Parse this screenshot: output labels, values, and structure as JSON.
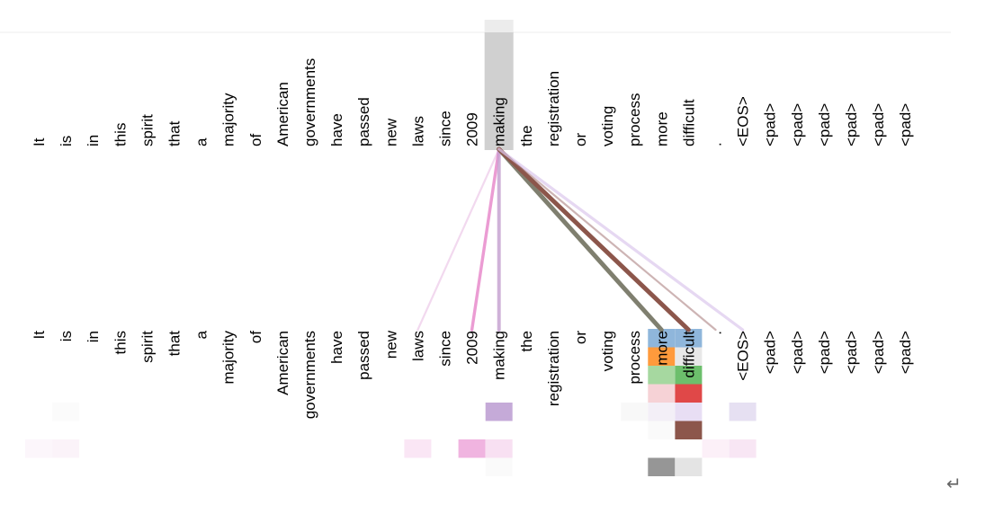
{
  "tokens": [
    "It",
    "is",
    "in",
    "this",
    "spirit",
    "that",
    "a",
    "majority",
    "of",
    "American",
    "governments",
    "have",
    "passed",
    "new",
    "laws",
    "since",
    "2009",
    "making",
    "the",
    "registration",
    "or",
    "voting",
    "process",
    "more",
    "difficult",
    ".",
    "<EOS>",
    "<pad>",
    "<pad>",
    "<pad>",
    "<pad>",
    "<pad>",
    "<pad>"
  ],
  "query_token_index": 17,
  "colors": {
    "highlight": "#d0d0d0",
    "highlight_cap": "#ececec"
  },
  "attention_lines": [
    {
      "to": 14,
      "color": "#e7b7e0",
      "weight": 0.2
    },
    {
      "to": 16,
      "color": "#e377c2",
      "weight": 0.55
    },
    {
      "to": 17,
      "color": "#c5a0d0",
      "weight": 0.7
    },
    {
      "to": 23,
      "color": "#7f7f6f",
      "weight": 1.0
    },
    {
      "to": 24,
      "color": "#8c564b",
      "weight": 1.0
    },
    {
      "to": 25,
      "color": "#a07070",
      "weight": 0.2
    },
    {
      "to": 26,
      "color": "#dcc8ec",
      "weight": 0.5
    }
  ],
  "head_cells": [
    {
      "token": 23,
      "row": 0,
      "color": "#8fb6db"
    },
    {
      "token": 24,
      "row": 0,
      "color": "#8fb6db"
    },
    {
      "token": 23,
      "row": 1,
      "color": "#ff9a3c"
    },
    {
      "token": 24,
      "row": 1,
      "color": "#e8e8e8"
    },
    {
      "token": 23,
      "row": 2,
      "color": "#a6d8a0"
    },
    {
      "token": 24,
      "row": 2,
      "color": "#6cbf6c"
    },
    {
      "token": 23,
      "row": 3,
      "color": "#f6d2d6"
    },
    {
      "token": 24,
      "row": 3,
      "color": "#e04848"
    },
    {
      "token": 1,
      "row": 4,
      "color": "#fbfbfb"
    },
    {
      "token": 17,
      "row": 4,
      "color": "#c5aad8"
    },
    {
      "token": 22,
      "row": 4,
      "color": "#f8f8f8"
    },
    {
      "token": 23,
      "row": 4,
      "color": "#f3eff7"
    },
    {
      "token": 24,
      "row": 4,
      "color": "#e8def4"
    },
    {
      "token": 26,
      "row": 4,
      "color": "#e6e0f2"
    },
    {
      "token": 23,
      "row": 5,
      "color": "#fafafa"
    },
    {
      "token": 24,
      "row": 5,
      "color": "#8c564b"
    },
    {
      "token": 0,
      "row": 6,
      "color": "#fcf6fb"
    },
    {
      "token": 1,
      "row": 6,
      "color": "#fbf3f9"
    },
    {
      "token": 14,
      "row": 6,
      "color": "#fae6f5"
    },
    {
      "token": 16,
      "row": 6,
      "color": "#f0b4e0"
    },
    {
      "token": 17,
      "row": 6,
      "color": "#f8e0f2"
    },
    {
      "token": 25,
      "row": 6,
      "color": "#fcf0f8"
    },
    {
      "token": 26,
      "row": 6,
      "color": "#f8e6f4"
    },
    {
      "token": 17,
      "row": 7,
      "color": "#fafafa"
    },
    {
      "token": 23,
      "row": 7,
      "color": "#969696"
    },
    {
      "token": 24,
      "row": 7,
      "color": "#e4e4e4"
    }
  ],
  "icons": {
    "return": "↵"
  }
}
